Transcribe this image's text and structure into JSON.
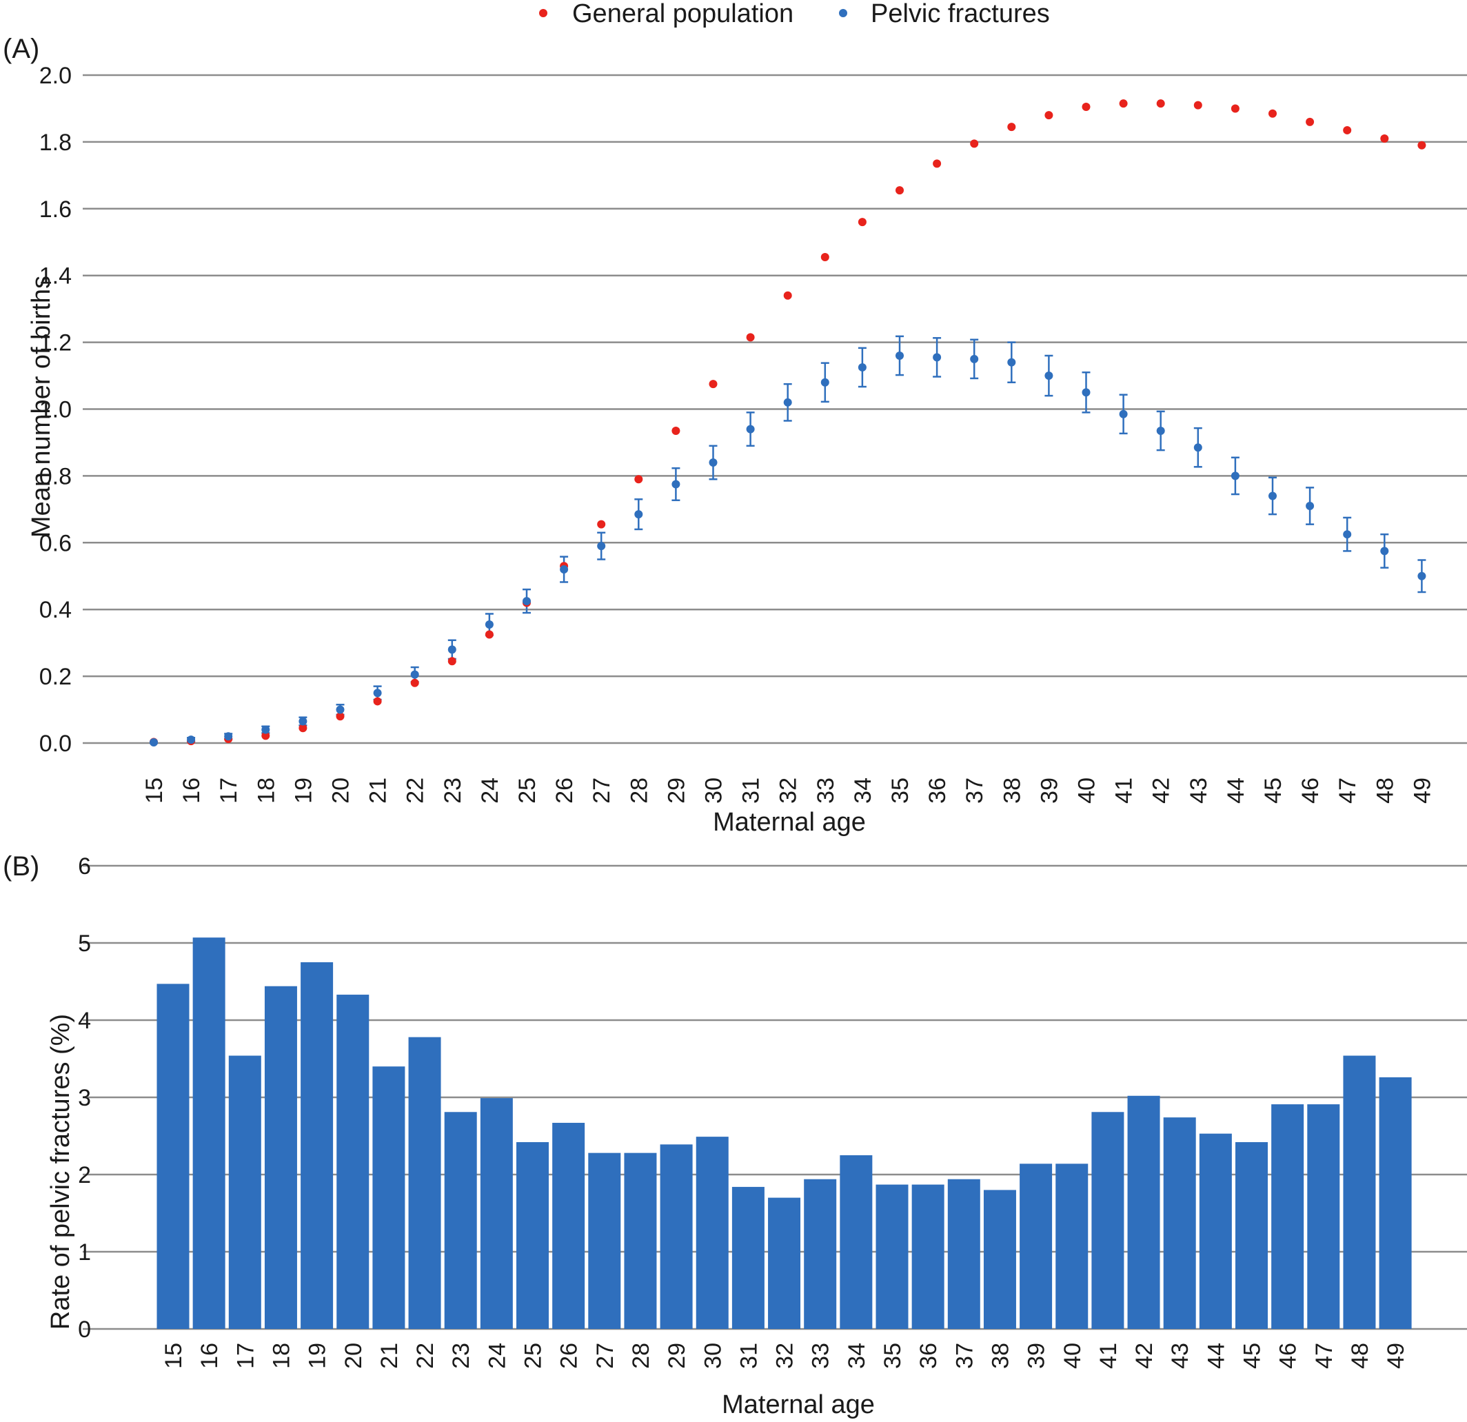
{
  "legend": [
    {
      "label": "General population",
      "color": "#e8231c"
    },
    {
      "label": "Pelvic fractures",
      "color": "#2f6fbd"
    }
  ],
  "chart_data": [
    {
      "panel": "(A)",
      "type": "scatter",
      "xlabel": "Maternal age",
      "ylabel": "Mean number of births",
      "ylim": [
        0,
        2.0
      ],
      "yticks": [
        "0.0",
        "0.2",
        "0.4",
        "0.6",
        "0.8",
        "1.0",
        "1.2",
        "1.4",
        "1.6",
        "1.8",
        "2.0"
      ],
      "x": [
        15,
        16,
        17,
        18,
        19,
        20,
        21,
        22,
        23,
        24,
        25,
        26,
        27,
        28,
        29,
        30,
        31,
        32,
        33,
        34,
        35,
        36,
        37,
        38,
        39,
        40,
        41,
        42,
        43,
        44,
        45,
        46,
        47,
        48,
        49
      ],
      "grid": true,
      "series": [
        {
          "name": "General population",
          "color": "#e8231c",
          "values": [
            0.003,
            0.006,
            0.012,
            0.022,
            0.045,
            0.08,
            0.125,
            0.18,
            0.245,
            0.325,
            0.42,
            0.53,
            0.655,
            0.79,
            0.935,
            1.075,
            1.215,
            1.34,
            1.455,
            1.56,
            1.655,
            1.735,
            1.795,
            1.845,
            1.88,
            1.905,
            1.915,
            1.915,
            1.91,
            1.9,
            1.885,
            1.86,
            1.835,
            1.81,
            1.79
          ]
        },
        {
          "name": "Pelvic fractures",
          "color": "#2f6fbd",
          "values": [
            0.002,
            0.01,
            0.02,
            0.04,
            0.065,
            0.1,
            0.15,
            0.205,
            0.28,
            0.355,
            0.425,
            0.52,
            0.59,
            0.685,
            0.775,
            0.84,
            0.94,
            1.02,
            1.08,
            1.125,
            1.16,
            1.155,
            1.15,
            1.14,
            1.1,
            1.05,
            0.985,
            0.935,
            0.885,
            0.8,
            0.74,
            0.71,
            0.625,
            0.575,
            0.5
          ],
          "error": [
            0.002,
            0.006,
            0.008,
            0.01,
            0.012,
            0.015,
            0.02,
            0.022,
            0.028,
            0.032,
            0.035,
            0.038,
            0.04,
            0.045,
            0.048,
            0.05,
            0.05,
            0.055,
            0.058,
            0.058,
            0.058,
            0.058,
            0.058,
            0.06,
            0.06,
            0.06,
            0.058,
            0.058,
            0.058,
            0.055,
            0.055,
            0.055,
            0.05,
            0.05,
            0.048
          ]
        }
      ]
    },
    {
      "panel": "(B)",
      "type": "bar",
      "xlabel": "Maternal age",
      "ylabel": "Rate of pelvic fractures (%)",
      "ylim": [
        0,
        6
      ],
      "yticks": [
        "0",
        "1",
        "2",
        "3",
        "4",
        "5",
        "6"
      ],
      "categories": [
        "15",
        "16",
        "17",
        "18",
        "19",
        "20",
        "21",
        "22",
        "23",
        "24",
        "25",
        "26",
        "27",
        "28",
        "29",
        "30",
        "31",
        "32",
        "33",
        "34",
        "35",
        "36",
        "37",
        "38",
        "39",
        "40",
        "41",
        "42",
        "43",
        "44",
        "45",
        "46",
        "47",
        "48",
        "49"
      ],
      "values": [
        4.47,
        5.07,
        3.54,
        4.44,
        4.75,
        4.33,
        3.4,
        3.78,
        2.81,
        2.99,
        2.42,
        2.67,
        2.28,
        2.28,
        2.39,
        2.49,
        1.84,
        1.7,
        1.94,
        2.25,
        1.87,
        1.87,
        1.94,
        1.8,
        2.14,
        2.14,
        2.81,
        3.02,
        2.74,
        2.53,
        2.42,
        2.91,
        2.91,
        3.54,
        3.26
      ],
      "color": "#2f6fbd",
      "grid": true
    }
  ]
}
